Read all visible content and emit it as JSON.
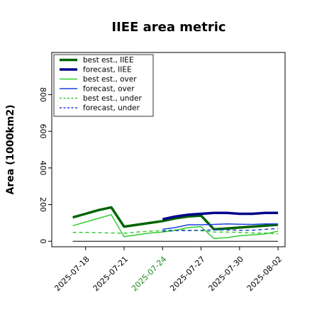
{
  "chart_data": {
    "type": "line",
    "title": "IIEE area metric",
    "xlabel": "",
    "ylabel": "Area (1000km2)",
    "x": [
      "2025-07-17",
      "2025-07-18",
      "2025-07-19",
      "2025-07-20",
      "2025-07-21",
      "2025-07-22",
      "2025-07-23",
      "2025-07-24",
      "2025-07-25",
      "2025-07-26",
      "2025-07-27",
      "2025-07-28",
      "2025-07-29",
      "2025-07-30",
      "2025-07-31",
      "2025-08-01",
      "2025-08-02"
    ],
    "x_ticks": [
      "2025-07-18",
      "2025-07-21",
      "2025-07-24",
      "2025-07-27",
      "2025-07-30",
      "2025-08-02"
    ],
    "highlight_tick": "2025-07-24",
    "highlight_color": "#228B22",
    "ylim": [
      -30,
      1030
    ],
    "y_ticks": [
      0,
      200,
      400,
      600,
      800
    ],
    "grid": false,
    "legend_position": "top-left",
    "series": [
      {
        "name": "best est., IIEE",
        "color": "#006400",
        "width": 3.5,
        "dash": "",
        "values": [
          130,
          150,
          170,
          185,
          80,
          90,
          100,
          110,
          125,
          135,
          140,
          65,
          70,
          75,
          80,
          85,
          90
        ]
      },
      {
        "name": "forecast, IIEE",
        "color": "#00008B",
        "width": 3.5,
        "dash": "",
        "values": [
          null,
          null,
          null,
          null,
          null,
          null,
          null,
          120,
          135,
          145,
          150,
          155,
          155,
          150,
          150,
          155,
          155
        ]
      },
      {
        "name": "best est., over",
        "color": "#32CD32",
        "width": 1.5,
        "dash": "",
        "values": [
          85,
          105,
          125,
          145,
          25,
          35,
          45,
          50,
          60,
          75,
          80,
          15,
          20,
          30,
          35,
          40,
          55
        ]
      },
      {
        "name": "forecast, over",
        "color": "#1E3FDB",
        "width": 1.5,
        "dash": "",
        "values": [
          null,
          null,
          null,
          null,
          null,
          null,
          null,
          65,
          75,
          90,
          90,
          92,
          95,
          93,
          92,
          95,
          95
        ]
      },
      {
        "name": "best est., under",
        "color": "#32CD32",
        "width": 1.5,
        "dash": "5,4",
        "values": [
          48,
          48,
          47,
          45,
          44,
          50,
          55,
          58,
          62,
          60,
          58,
          50,
          50,
          48,
          45,
          45,
          40
        ]
      },
      {
        "name": "forecast, under",
        "color": "#1E3FDB",
        "width": 1.5,
        "dash": "5,4",
        "values": [
          null,
          null,
          null,
          null,
          null,
          null,
          null,
          55,
          58,
          58,
          60,
          62,
          62,
          60,
          60,
          65,
          70
        ]
      },
      {
        "name": "",
        "color": "#000000",
        "width": 1,
        "dash": "",
        "values": [
          0,
          0,
          0,
          0,
          0,
          0,
          0,
          0,
          0,
          0,
          0,
          0,
          0,
          0,
          0,
          0,
          0
        ]
      }
    ]
  }
}
